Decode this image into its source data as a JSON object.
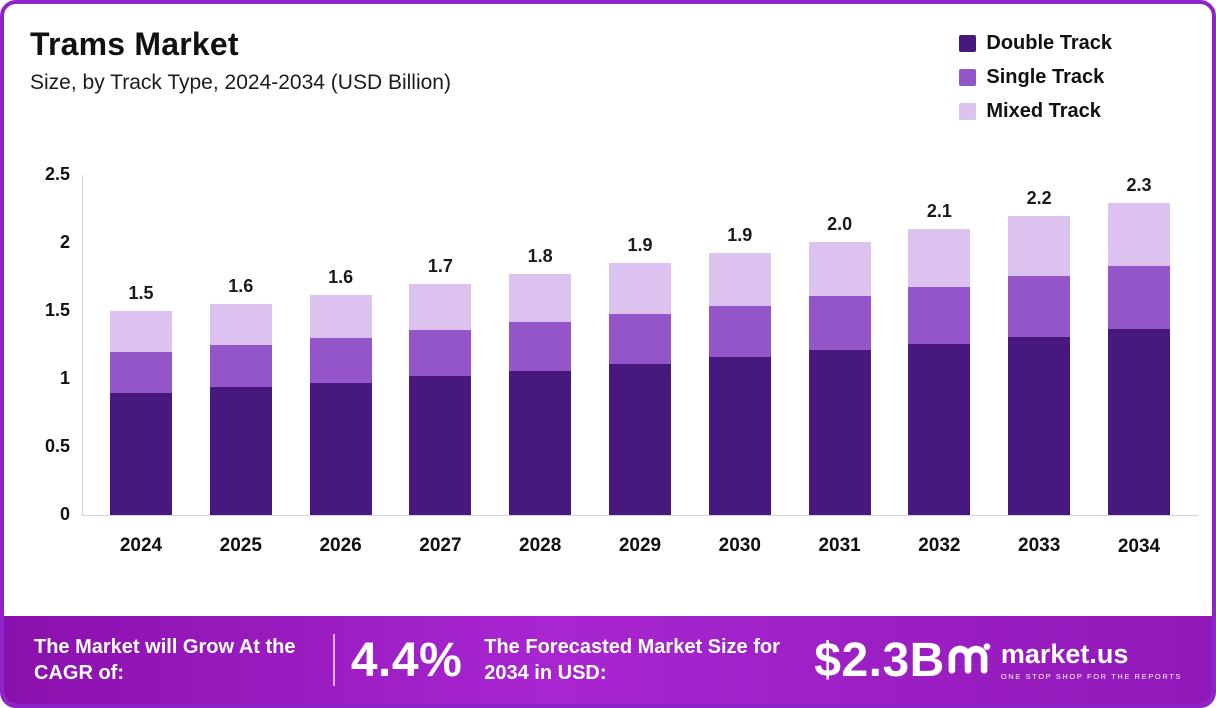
{
  "header": {
    "title": "Trams Market",
    "subtitle": "Size, by Track Type, 2024-2034 (USD Billion)"
  },
  "chart_data": {
    "type": "bar",
    "stacked": true,
    "title": "Trams Market",
    "subtitle": "Size, by Track Type, 2024-2034 (USD Billion)",
    "categories": [
      "2024",
      "2025",
      "2026",
      "2027",
      "2028",
      "2029",
      "2030",
      "2031",
      "2032",
      "2033",
      "2034"
    ],
    "series": [
      {
        "name": "Double Track",
        "color": "#47187E",
        "values": [
          0.9,
          0.94,
          0.97,
          1.02,
          1.06,
          1.11,
          1.16,
          1.21,
          1.26,
          1.31,
          1.37
        ]
      },
      {
        "name": "Single Track",
        "color": "#9355C8",
        "values": [
          0.3,
          0.31,
          0.33,
          0.34,
          0.36,
          0.37,
          0.38,
          0.4,
          0.42,
          0.45,
          0.47
        ]
      },
      {
        "name": "Mixed Track",
        "color": "#DCC2EF",
        "values": [
          0.3,
          0.3,
          0.32,
          0.34,
          0.35,
          0.37,
          0.39,
          0.4,
          0.42,
          0.44,
          0.46
        ]
      }
    ],
    "totals": [
      "1.5",
      "1.6",
      "1.6",
      "1.7",
      "1.8",
      "1.9",
      "1.9",
      "2.0",
      "2.1",
      "2.2",
      "2.3"
    ],
    "ylim": [
      0,
      2.5
    ],
    "yticks": [
      "2.5",
      "2",
      "1.5",
      "1",
      "0.5",
      "0"
    ],
    "legend_position": "top-right",
    "grid": false
  },
  "footer": {
    "cagr_label": "The Market will Grow At the CAGR of:",
    "cagr_value": "4.4%",
    "forecast_label": "The Forecasted Market Size for 2034 in USD:",
    "forecast_value": "$2.3B",
    "brand": "market.us",
    "brand_tagline": "ONE STOP SHOP FOR THE REPORTS"
  },
  "colors": {
    "border": "#8E24C8",
    "banner_left": "#8A10AD",
    "banner_mid": "#A826D1",
    "banner_right": "#9018B8",
    "double_track": "#47187E",
    "single_track": "#9355C8",
    "mixed_track": "#DCC2EF"
  }
}
